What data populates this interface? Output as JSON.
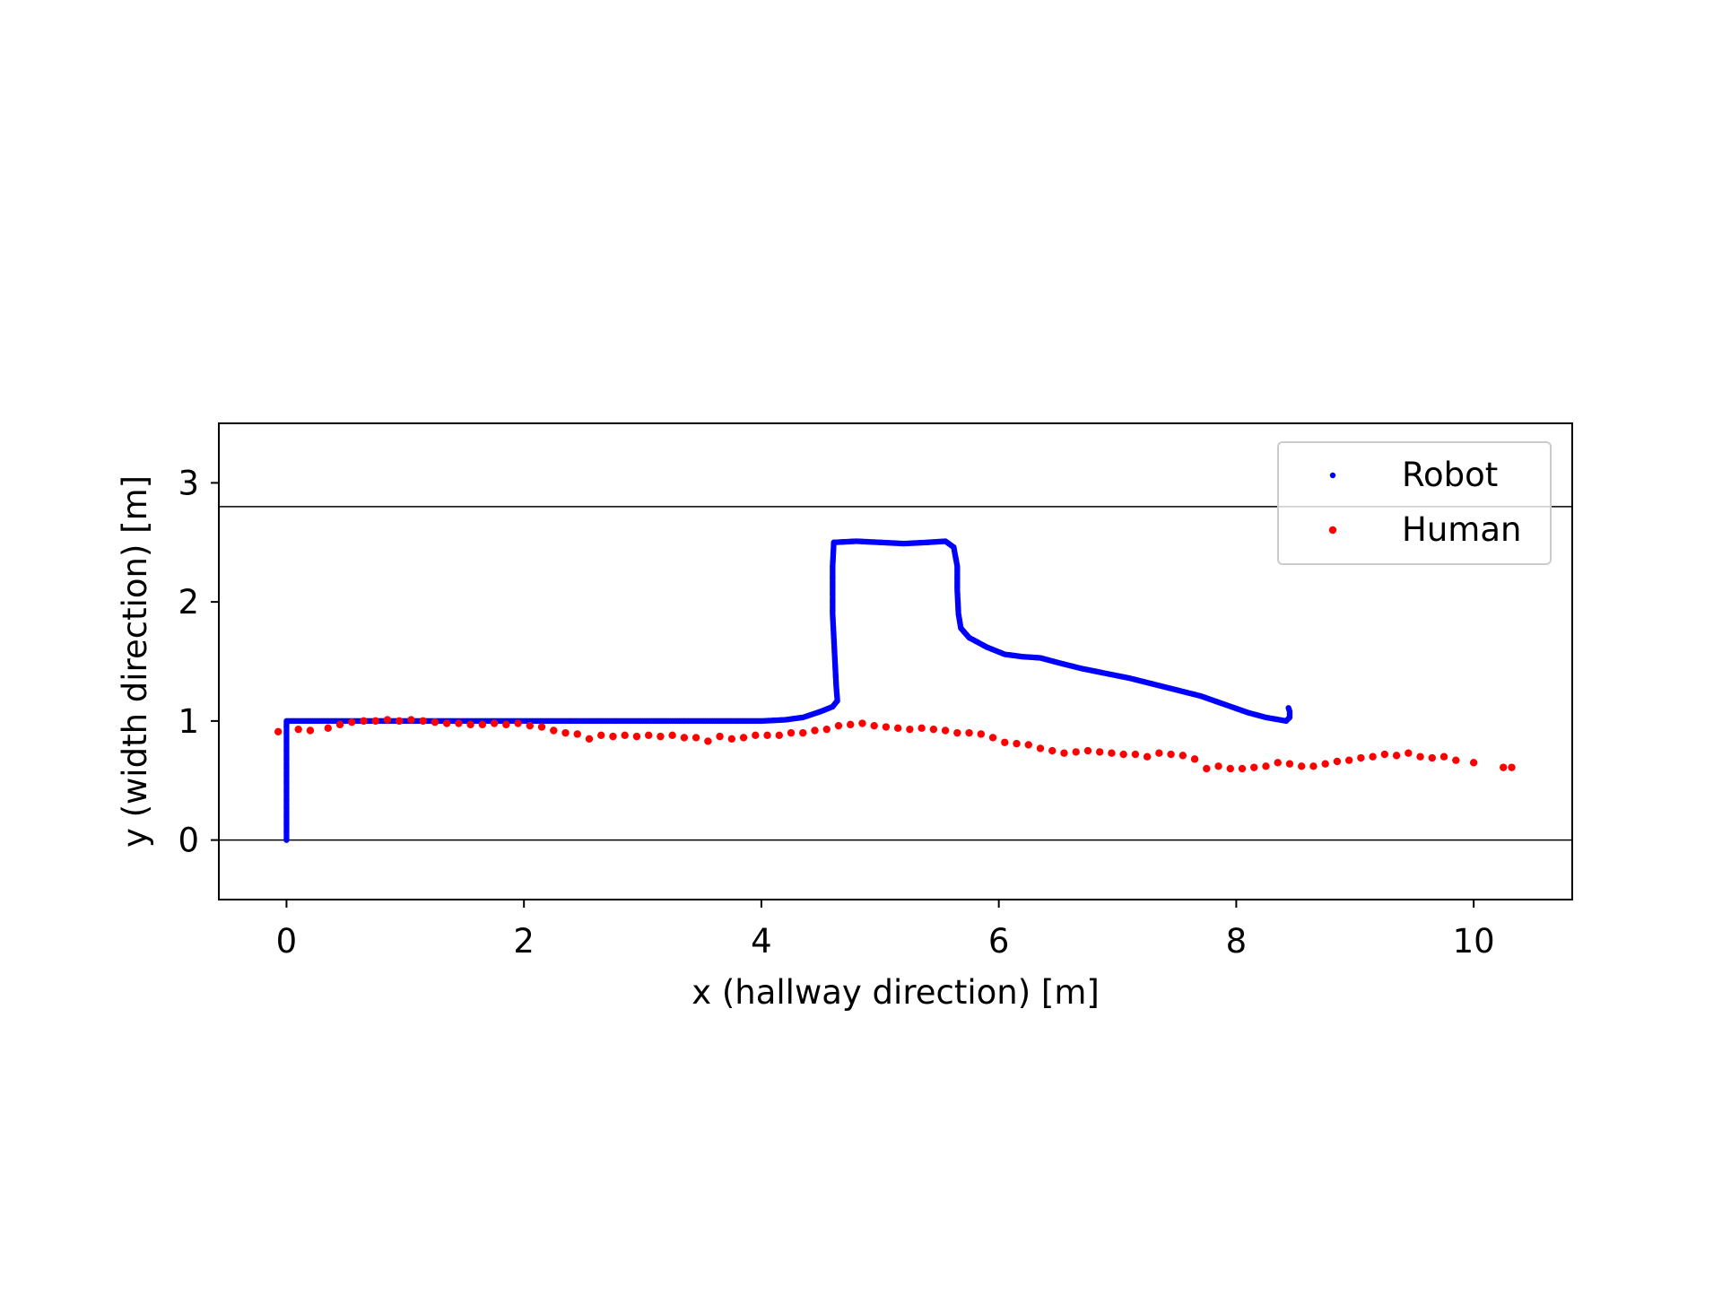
{
  "chart_data": {
    "type": "scatter",
    "title": "",
    "xlabel": "x (hallway direction) [m]",
    "ylabel": "y (width direction) [m]",
    "xlim": [
      -0.57,
      10.83
    ],
    "ylim": [
      -0.5,
      3.5
    ],
    "xticks": [
      {
        "value": 0,
        "label": "0"
      },
      {
        "value": 2,
        "label": "2"
      },
      {
        "value": 4,
        "label": "4"
      },
      {
        "value": 6,
        "label": "6"
      },
      {
        "value": 8,
        "label": "8"
      },
      {
        "value": 10,
        "label": "10"
      }
    ],
    "yticks": [
      {
        "value": 0,
        "label": "0"
      },
      {
        "value": 1,
        "label": "1"
      },
      {
        "value": 2,
        "label": "2"
      },
      {
        "value": 3,
        "label": "3"
      }
    ],
    "hlines": [
      0,
      2.8
    ],
    "grid": false,
    "legend_position": "top-right",
    "series": [
      {
        "name": "Robot",
        "color": "#0000ff",
        "marker": "small-dot",
        "dense_path": true,
        "points": [
          [
            0.0,
            0.0
          ],
          [
            0.0,
            0.1
          ],
          [
            0.0,
            0.2
          ],
          [
            0.0,
            0.3
          ],
          [
            0.0,
            0.4
          ],
          [
            0.0,
            0.5
          ],
          [
            0.0,
            0.6
          ],
          [
            0.0,
            0.7
          ],
          [
            0.0,
            0.8
          ],
          [
            0.0,
            0.9
          ],
          [
            0.0,
            1.0
          ],
          [
            0.5,
            1.0
          ],
          [
            1.0,
            1.0
          ],
          [
            1.5,
            1.0
          ],
          [
            2.0,
            1.0
          ],
          [
            2.5,
            1.0
          ],
          [
            3.0,
            1.0
          ],
          [
            3.5,
            1.0
          ],
          [
            4.0,
            1.0
          ],
          [
            4.2,
            1.01
          ],
          [
            4.35,
            1.03
          ],
          [
            4.5,
            1.08
          ],
          [
            4.6,
            1.12
          ],
          [
            4.64,
            1.17
          ],
          [
            4.63,
            1.3
          ],
          [
            4.62,
            1.5
          ],
          [
            4.61,
            1.7
          ],
          [
            4.6,
            1.9
          ],
          [
            4.6,
            2.1
          ],
          [
            4.6,
            2.3
          ],
          [
            4.61,
            2.5
          ],
          [
            4.8,
            2.51
          ],
          [
            5.0,
            2.5
          ],
          [
            5.2,
            2.49
          ],
          [
            5.4,
            2.5
          ],
          [
            5.55,
            2.51
          ],
          [
            5.62,
            2.46
          ],
          [
            5.65,
            2.3
          ],
          [
            5.65,
            2.1
          ],
          [
            5.66,
            1.9
          ],
          [
            5.68,
            1.78
          ],
          [
            5.75,
            1.7
          ],
          [
            5.9,
            1.62
          ],
          [
            6.05,
            1.56
          ],
          [
            6.2,
            1.54
          ],
          [
            6.35,
            1.53
          ],
          [
            6.5,
            1.49
          ],
          [
            6.7,
            1.44
          ],
          [
            6.9,
            1.4
          ],
          [
            7.1,
            1.36
          ],
          [
            7.3,
            1.31
          ],
          [
            7.5,
            1.26
          ],
          [
            7.7,
            1.21
          ],
          [
            7.9,
            1.14
          ],
          [
            8.1,
            1.07
          ],
          [
            8.25,
            1.03
          ],
          [
            8.42,
            1.0
          ],
          [
            8.45,
            1.03
          ],
          [
            8.45,
            1.08
          ],
          [
            8.44,
            1.11
          ]
        ]
      },
      {
        "name": "Human",
        "color": "#ff0000",
        "marker": "dot",
        "dense_path": false,
        "points": [
          [
            -0.07,
            0.91
          ],
          [
            0.1,
            0.93
          ],
          [
            0.2,
            0.92
          ],
          [
            0.35,
            0.94
          ],
          [
            0.45,
            0.97
          ],
          [
            0.55,
            0.99
          ],
          [
            0.65,
            1.0
          ],
          [
            0.75,
            1.0
          ],
          [
            0.85,
            1.01
          ],
          [
            0.95,
            1.0
          ],
          [
            1.05,
            1.01
          ],
          [
            1.15,
            1.0
          ],
          [
            1.25,
            0.99
          ],
          [
            1.35,
            0.98
          ],
          [
            1.45,
            0.98
          ],
          [
            1.55,
            0.97
          ],
          [
            1.65,
            0.97
          ],
          [
            1.75,
            0.98
          ],
          [
            1.85,
            0.97
          ],
          [
            1.95,
            0.98
          ],
          [
            2.05,
            0.96
          ],
          [
            2.15,
            0.95
          ],
          [
            2.25,
            0.92
          ],
          [
            2.35,
            0.9
          ],
          [
            2.45,
            0.89
          ],
          [
            2.55,
            0.85
          ],
          [
            2.65,
            0.88
          ],
          [
            2.75,
            0.87
          ],
          [
            2.85,
            0.88
          ],
          [
            2.95,
            0.87
          ],
          [
            3.05,
            0.88
          ],
          [
            3.15,
            0.87
          ],
          [
            3.25,
            0.88
          ],
          [
            3.35,
            0.86
          ],
          [
            3.45,
            0.86
          ],
          [
            3.55,
            0.83
          ],
          [
            3.65,
            0.87
          ],
          [
            3.75,
            0.85
          ],
          [
            3.85,
            0.86
          ],
          [
            3.95,
            0.88
          ],
          [
            4.05,
            0.88
          ],
          [
            4.15,
            0.88
          ],
          [
            4.25,
            0.9
          ],
          [
            4.35,
            0.9
          ],
          [
            4.45,
            0.92
          ],
          [
            4.55,
            0.93
          ],
          [
            4.65,
            0.96
          ],
          [
            4.75,
            0.97
          ],
          [
            4.85,
            0.98
          ],
          [
            4.95,
            0.96
          ],
          [
            5.05,
            0.95
          ],
          [
            5.15,
            0.94
          ],
          [
            5.25,
            0.93
          ],
          [
            5.35,
            0.94
          ],
          [
            5.45,
            0.93
          ],
          [
            5.55,
            0.92
          ],
          [
            5.65,
            0.9
          ],
          [
            5.75,
            0.9
          ],
          [
            5.85,
            0.89
          ],
          [
            5.95,
            0.86
          ],
          [
            6.05,
            0.82
          ],
          [
            6.15,
            0.81
          ],
          [
            6.25,
            0.8
          ],
          [
            6.35,
            0.77
          ],
          [
            6.45,
            0.75
          ],
          [
            6.55,
            0.73
          ],
          [
            6.65,
            0.74
          ],
          [
            6.75,
            0.75
          ],
          [
            6.85,
            0.74
          ],
          [
            6.95,
            0.73
          ],
          [
            7.05,
            0.72
          ],
          [
            7.15,
            0.72
          ],
          [
            7.25,
            0.7
          ],
          [
            7.35,
            0.73
          ],
          [
            7.45,
            0.72
          ],
          [
            7.55,
            0.71
          ],
          [
            7.65,
            0.68
          ],
          [
            7.75,
            0.6
          ],
          [
            7.85,
            0.62
          ],
          [
            7.95,
            0.6
          ],
          [
            8.05,
            0.6
          ],
          [
            8.15,
            0.61
          ],
          [
            8.25,
            0.62
          ],
          [
            8.35,
            0.65
          ],
          [
            8.45,
            0.64
          ],
          [
            8.55,
            0.62
          ],
          [
            8.65,
            0.62
          ],
          [
            8.75,
            0.64
          ],
          [
            8.85,
            0.66
          ],
          [
            8.95,
            0.67
          ],
          [
            9.05,
            0.69
          ],
          [
            9.15,
            0.7
          ],
          [
            9.25,
            0.72
          ],
          [
            9.35,
            0.71
          ],
          [
            9.45,
            0.73
          ],
          [
            9.55,
            0.7
          ],
          [
            9.65,
            0.69
          ],
          [
            9.75,
            0.7
          ],
          [
            9.85,
            0.67
          ],
          [
            10.0,
            0.65
          ],
          [
            10.25,
            0.61
          ],
          [
            10.32,
            0.61
          ]
        ]
      }
    ]
  }
}
